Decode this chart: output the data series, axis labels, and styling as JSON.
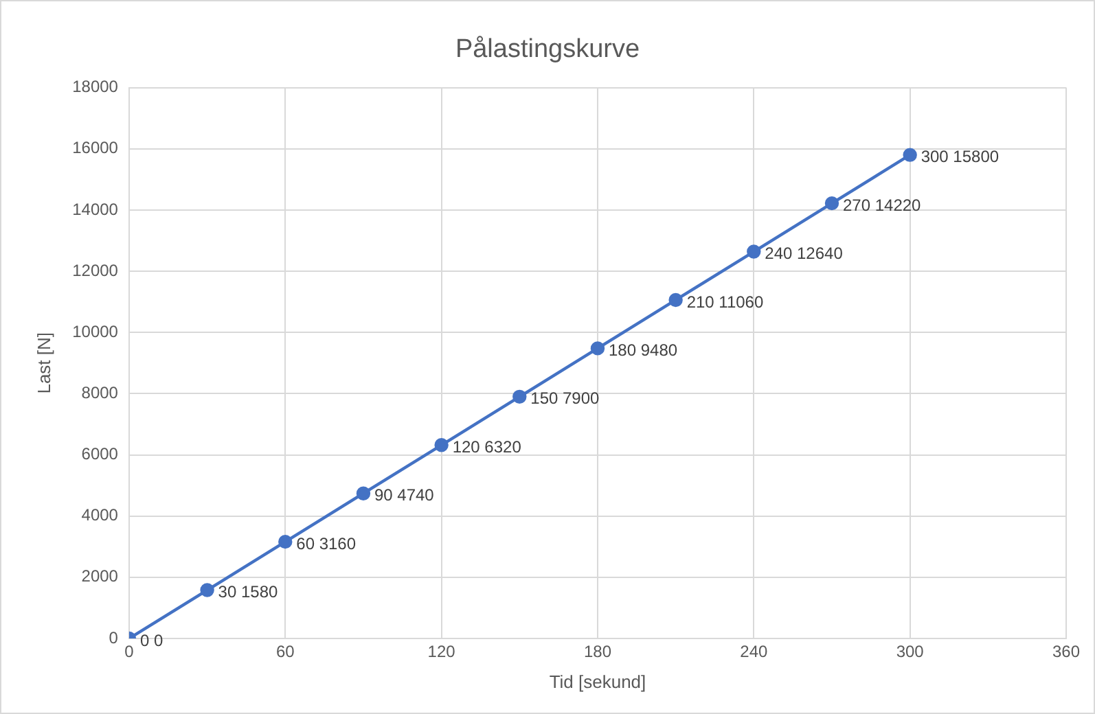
{
  "chart_data": {
    "type": "line",
    "title": "Pålastingskurve",
    "xlabel": "Tid [sekund]",
    "ylabel": "Last [N]",
    "x": [
      0,
      30,
      60,
      90,
      120,
      150,
      180,
      210,
      240,
      270,
      300
    ],
    "series": [
      {
        "color": "#4472c4",
        "values": [
          0,
          1580,
          3160,
          4740,
          6320,
          7900,
          9480,
          11060,
          12640,
          14220,
          15800
        ],
        "value_labels": [
          "0 0",
          "30 1580",
          "60 3160",
          "90 4740",
          "120 6320",
          "150 7900",
          "180 9480",
          "210 11060",
          "240 12640",
          "270 14220",
          "300 15800"
        ]
      }
    ],
    "xlim": [
      0,
      360
    ],
    "xticks": [
      0,
      60,
      120,
      180,
      240,
      300,
      360
    ],
    "ylim": [
      0,
      18000
    ],
    "yticks": [
      0,
      2000,
      4000,
      6000,
      8000,
      10000,
      12000,
      14000,
      16000,
      18000
    ],
    "grid": true,
    "legend": false,
    "marker": "circle",
    "line_style": "solid"
  }
}
